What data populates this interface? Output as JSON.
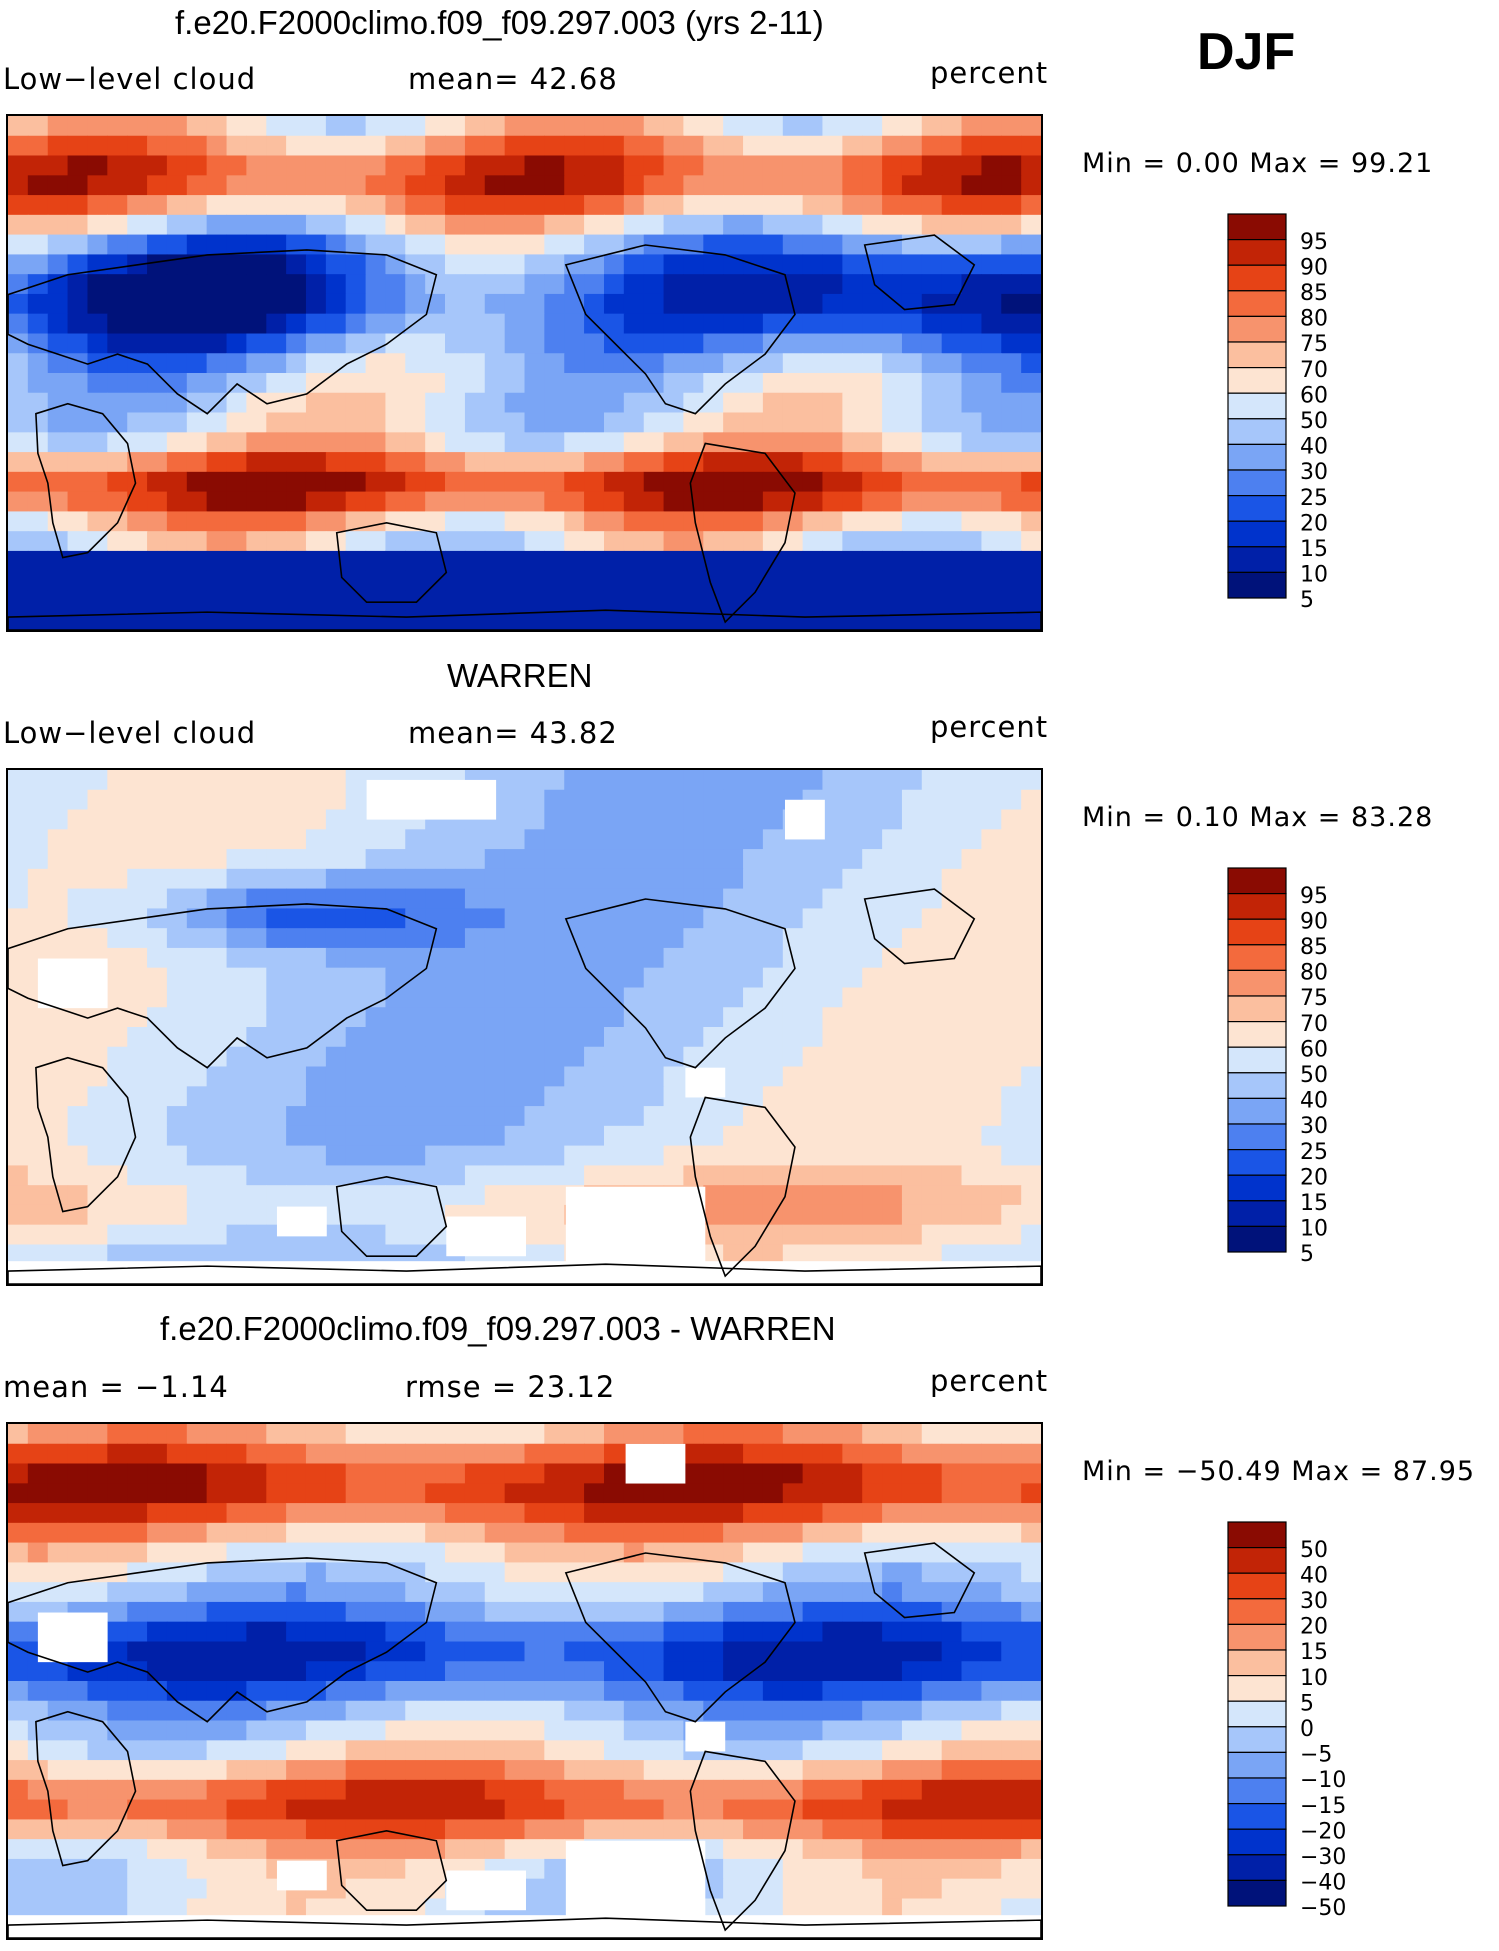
{
  "season": "DJF",
  "colors": {
    "scale": [
      "#00127a",
      "#0020a8",
      "#0033cc",
      "#1a55e6",
      "#4d80f0",
      "#7aa5f5",
      "#a6c6fa",
      "#d4e6fb",
      "#fde4d2",
      "#fbbf9f",
      "#f7936d",
      "#f36a3d",
      "#e64316",
      "#c22406",
      "#8a0b02"
    ],
    "land_outline": "#000000"
  },
  "panels": [
    {
      "id": "model",
      "title": "f.e20.F2000climo.f09_f09.297.003 (yrs 2-11)",
      "left_label": "Low−level cloud",
      "mid_label": "mean=   42.68",
      "units": "percent",
      "minmax": "Min =     0.00 Max =    99.21",
      "colorbar_levels": [
        "95",
        "90",
        "85",
        "80",
        "75",
        "70",
        "60",
        "50",
        "40",
        "30",
        "25",
        "20",
        "15",
        "10",
        "5"
      ],
      "field": "model"
    },
    {
      "id": "obs",
      "title": "WARREN",
      "left_label": "Low−level cloud",
      "mid_label": "mean=   43.82",
      "units": "percent",
      "minmax": "Min =     0.10 Max =    83.28",
      "colorbar_levels": [
        "95",
        "90",
        "85",
        "80",
        "75",
        "70",
        "60",
        "50",
        "40",
        "30",
        "25",
        "20",
        "15",
        "10",
        "5"
      ],
      "field": "obs"
    },
    {
      "id": "diff",
      "title": "f.e20.F2000climo.f09_f09.297.003 - WARREN",
      "left_label": "mean =   −1.14",
      "mid_label": "rmse =    23.12",
      "units": "percent",
      "minmax": "Min =  −50.49  Max =    87.95",
      "colorbar_levels": [
        "50",
        "40",
        "30",
        "20",
        "15",
        "10",
        "5",
        "0",
        "−5",
        "−10",
        "−15",
        "−20",
        "−30",
        "−40",
        "−50"
      ],
      "field": "diff"
    }
  ]
}
